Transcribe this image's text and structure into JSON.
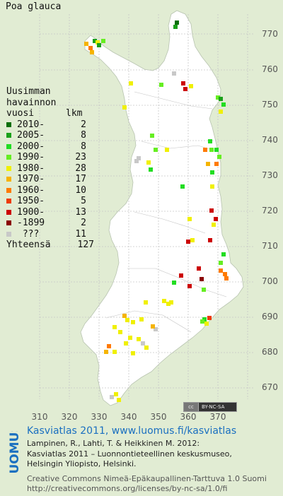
{
  "species": "Poa glauca",
  "legend": {
    "header": [
      "Uusimman",
      "havainnon",
      "vuosi"
    ],
    "count_header": "lkm",
    "rows": [
      {
        "label": "2010-",
        "count": "2",
        "color": "#0a6e0a"
      },
      {
        "label": "2005-",
        "count": "8",
        "color": "#1aa01a"
      },
      {
        "label": "2000-",
        "count": "8",
        "color": "#22dd22"
      },
      {
        "label": "1990-",
        "count": "23",
        "color": "#66ee22"
      },
      {
        "label": "1980-",
        "count": "28",
        "color": "#f0f000"
      },
      {
        "label": "1970-",
        "count": "17",
        "color": "#f5b400"
      },
      {
        "label": "1960-",
        "count": "10",
        "color": "#ff7a00"
      },
      {
        "label": "1950-",
        "count": "5",
        "color": "#ee3a00"
      },
      {
        "label": "1900-",
        "count": "13",
        "color": "#cc0000"
      },
      {
        "label": "-1899",
        "count": "2",
        "color": "#8a0000"
      },
      {
        "label": " ???",
        "count": "11",
        "color": "#c8c8c8"
      }
    ],
    "total_label": "Yhteensä",
    "total_count": "127"
  },
  "axes": {
    "x_ticks": [
      "310",
      "320",
      "330",
      "340",
      "350",
      "360",
      "370"
    ],
    "y_ticks": [
      "770",
      "760",
      "750",
      "740",
      "730",
      "720",
      "710",
      "700",
      "690",
      "680",
      "670"
    ]
  },
  "license_badge": {
    "cc": "cc",
    "text": "BY-NC-SA"
  },
  "footer": {
    "logo_text": "LUOMUS",
    "link": "Kasviatlas 2011, www.luomus.fi/kasviatlas",
    "citation_1": "Lampinen, R., Lahti, T. & Heikkinen M. 2012:",
    "citation_2": "Kasviatlas 2011 – Luonnontieteellinen keskusmuseo,",
    "citation_3": "Helsingin Yliopisto, Helsinki.",
    "license_1": "Creative Commons Nimeä-Epäkaupallinen-Tarttuva 1.0 Suomi",
    "license_2": "http://creativecommons.org/licenses/by-nc-sa/1.0/fi"
  },
  "colors": {
    "background": "#e1ecd3",
    "land": "#ffffff",
    "grid": "#c6c6c6",
    "link": "#1a6fc0",
    "logo": "#1a6fc0"
  }
}
